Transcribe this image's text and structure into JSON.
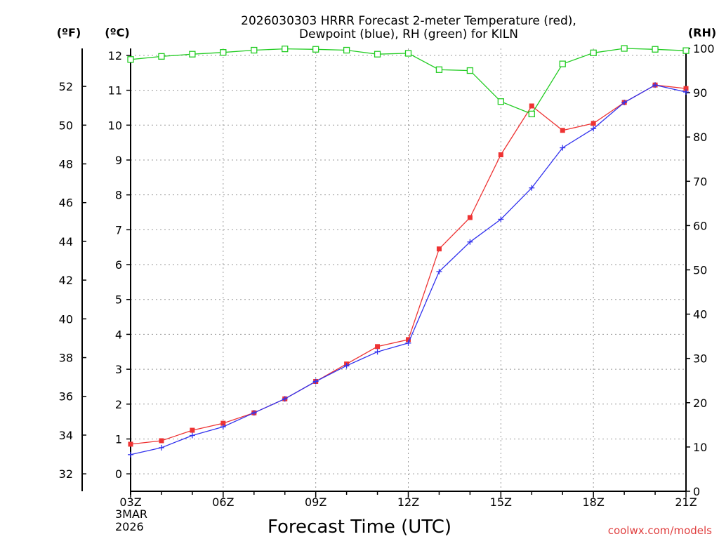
{
  "chart_data": {
    "type": "line",
    "title_lines": [
      "2026030303 HRRR Forecast 2-meter Temperature (red),",
      "Dewpoint (blue), RH (green) for KILN"
    ],
    "xlabel": "Forecast Time (UTC)",
    "x_start_label": [
      "03Z",
      "3MAR",
      "2026"
    ],
    "x_tick_labels": [
      "03Z",
      "06Z",
      "09Z",
      "12Z",
      "15Z",
      "18Z",
      "21Z"
    ],
    "x_hours": [
      3,
      4,
      5,
      6,
      7,
      8,
      9,
      10,
      11,
      12,
      13,
      14,
      15,
      16,
      17,
      18,
      19,
      20,
      21
    ],
    "x_range": [
      3,
      21
    ],
    "unit_labels": {
      "fahrenheit": "(ºF)",
      "celsius": "(ºC)",
      "rh": "(RH)"
    },
    "y_celsius": {
      "range": [
        -0.5,
        12.2
      ],
      "ticks": [
        0,
        1,
        2,
        3,
        4,
        5,
        6,
        7,
        8,
        9,
        10,
        11,
        12
      ]
    },
    "y_fahrenheit": {
      "ticks": [
        32,
        34,
        36,
        38,
        40,
        42,
        44,
        46,
        48,
        50,
        52
      ]
    },
    "y_rh": {
      "range": [
        0,
        100
      ],
      "ticks": [
        0,
        10,
        20,
        30,
        40,
        50,
        60,
        70,
        80,
        90,
        100
      ]
    },
    "grid": true,
    "series": [
      {
        "name": "Temperature",
        "axis": "celsius",
        "color": "#ee3333",
        "marker": "filled-square",
        "values": [
          0.85,
          0.95,
          1.25,
          1.45,
          1.75,
          2.15,
          2.65,
          3.15,
          3.65,
          3.85,
          6.45,
          7.35,
          9.15,
          10.55,
          9.85,
          10.05,
          10.65,
          11.15,
          11.05
        ]
      },
      {
        "name": "Dewpoint",
        "axis": "celsius",
        "color": "#3333ee",
        "marker": "plus",
        "values": [
          0.55,
          0.75,
          1.1,
          1.35,
          1.75,
          2.15,
          2.65,
          3.1,
          3.5,
          3.75,
          5.8,
          6.65,
          7.3,
          8.2,
          9.35,
          9.9,
          10.65,
          11.15,
          10.95
        ]
      },
      {
        "name": "RH",
        "axis": "rh",
        "color": "#22cc22",
        "marker": "open-square",
        "values": [
          97.5,
          98.2,
          98.7,
          99.1,
          99.6,
          99.9,
          99.8,
          99.6,
          98.7,
          98.9,
          95.2,
          95.0,
          88.0,
          85.2,
          96.5,
          99.0,
          100,
          99.8,
          99.5
        ]
      }
    ]
  },
  "credit": "coolwx.com/models"
}
